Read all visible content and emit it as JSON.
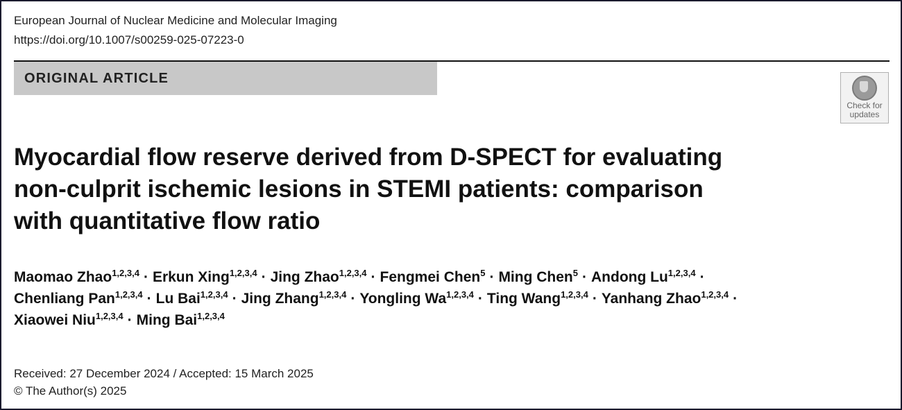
{
  "header": {
    "journal": "European Journal of Nuclear Medicine and Molecular Imaging",
    "doi": "https://doi.org/10.1007/s00259-025-07223-0"
  },
  "banner": {
    "label": "ORIGINAL ARTICLE"
  },
  "check_updates": {
    "line1": "Check for",
    "line2": "updates",
    "icon": "crossmark-icon"
  },
  "title": {
    "line1": "Myocardial flow reserve derived from D-SPECT for evaluating",
    "line2": "non-culprit ischemic lesions in STEMI patients: comparison",
    "line3": "with quantitative flow ratio"
  },
  "authors": {
    "separator": "·",
    "lines": [
      [
        {
          "name": "Maomao Zhao",
          "aff": "1,2,3,4"
        },
        {
          "name": "Erkun Xing",
          "aff": "1,2,3,4"
        },
        {
          "name": "Jing Zhao",
          "aff": "1,2,3,4"
        },
        {
          "name": "Fengmei Chen",
          "aff": "5"
        },
        {
          "name": "Ming Chen",
          "aff": "5"
        },
        {
          "name": "Andong Lu",
          "aff": "1,2,3,4"
        }
      ],
      [
        {
          "name": "Chenliang Pan",
          "aff": "1,2,3,4"
        },
        {
          "name": "Lu Bai",
          "aff": "1,2,3,4"
        },
        {
          "name": "Jing Zhang",
          "aff": "1,2,3,4"
        },
        {
          "name": "Yongling Wa",
          "aff": "1,2,3,4"
        },
        {
          "name": "Ting Wang",
          "aff": "1,2,3,4"
        },
        {
          "name": "Yanhang Zhao",
          "aff": "1,2,3,4"
        }
      ],
      [
        {
          "name": "Xiaowei Niu",
          "aff": "1,2,3,4"
        },
        {
          "name": "Ming Bai",
          "aff": "1,2,3,4"
        }
      ]
    ]
  },
  "dates": {
    "text": "Received: 27 December 2024 / Accepted: 15 March 2025"
  },
  "copyright": {
    "text": "© The Author(s) 2025"
  }
}
